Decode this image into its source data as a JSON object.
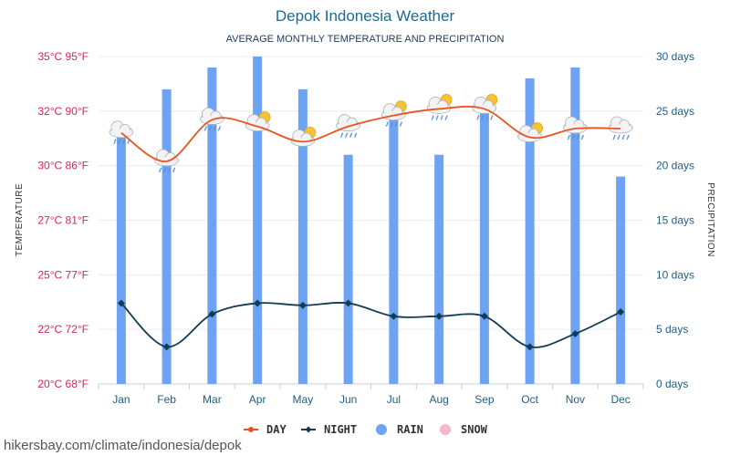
{
  "page": {
    "footer_text": "hikersbay.com/climate/indonesia/depok"
  },
  "colors": {
    "day": "#e8541e",
    "night": "#123b54",
    "rain": "#6ea2f2",
    "snow": "#f5b8c8",
    "left_axis": "#d6245f",
    "right_axis": "#1f5d85",
    "title": "#1d6a8f"
  },
  "chart_data": {
    "type": "bar",
    "title": "Depok Indonesia Weather",
    "subtitle": "AVERAGE MONTHLY TEMPERATURE AND PRECIPITATION",
    "categories": [
      "Jan",
      "Feb",
      "Mar",
      "Apr",
      "May",
      "Jun",
      "Jul",
      "Aug",
      "Sep",
      "Oct",
      "Nov",
      "Dec"
    ],
    "y_left": {
      "label": "TEMPERATURE",
      "range_celsius": [
        20,
        35
      ],
      "ticks": [
        "20°C 68°F",
        "22°C 72°F",
        "25°C 77°F",
        "27°C 81°F",
        "30°C 86°F",
        "32°C 90°F",
        "35°C 95°F"
      ]
    },
    "y_right": {
      "label": "PRECIPITATION",
      "range_days": [
        0,
        30
      ],
      "ticks": [
        "0 days",
        "5 days",
        "10 days",
        "15 days",
        "20 days",
        "25 days",
        "30 days"
      ]
    },
    "series": [
      {
        "name": "DAY",
        "type": "line",
        "axis": "left",
        "unit": "°C",
        "values": [
          31.5,
          30.2,
          32.1,
          31.8,
          31.1,
          31.8,
          32.3,
          32.6,
          32.6,
          31.3,
          31.7,
          31.7
        ]
      },
      {
        "name": "NIGHT",
        "type": "line",
        "axis": "left",
        "unit": "°C",
        "values": [
          23.7,
          21.7,
          23.2,
          23.7,
          23.6,
          23.7,
          23.1,
          23.1,
          23.1,
          21.7,
          22.3,
          23.3
        ]
      },
      {
        "name": "RAIN",
        "type": "bar",
        "axis": "right",
        "unit": "days",
        "values": [
          23,
          27,
          29,
          30,
          27,
          21,
          25,
          21,
          25,
          28,
          29,
          19
        ]
      },
      {
        "name": "SNOW",
        "type": "bar",
        "axis": "right",
        "unit": "days",
        "values": [
          0,
          0,
          0,
          0,
          0,
          0,
          0,
          0,
          0,
          0,
          0,
          0
        ]
      }
    ],
    "weather_icons": [
      "rain-cloud-icon",
      "rain-cloud-icon",
      "rain-cloud-icon",
      "sun-cloud-icon",
      "sun-cloud-icon",
      "rain-cloud-icon",
      "sun-rain-cloud-icon",
      "sun-rain-cloud-icon",
      "sun-rain-cloud-icon",
      "sun-cloud-icon",
      "rain-cloud-icon",
      "rain-cloud-icon"
    ],
    "legend": [
      "DAY",
      "NIGHT",
      "RAIN",
      "SNOW"
    ],
    "legend_position": "bottom",
    "grid": true
  }
}
